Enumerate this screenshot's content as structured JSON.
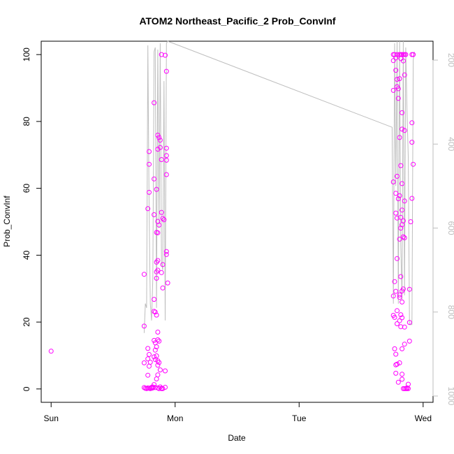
{
  "chart_data": {
    "type": "scatter",
    "title": "ATOM2 Northeast_Pacific_2 Prob_ConvInf",
    "xlabel": "Date",
    "ylabel": "Prob_ConvInf",
    "x_ticks": [
      "Sun",
      "Mon",
      "Tue",
      "Wed"
    ],
    "x_tick_values": [
      0,
      1,
      2,
      3
    ],
    "xlim": [
      -0.08,
      3.08
    ],
    "ylim": [
      -4,
      104
    ],
    "y_ticks": [
      0,
      20,
      40,
      60,
      80,
      100
    ],
    "y2_ticks": [
      200,
      400,
      600,
      800,
      1000
    ],
    "y2lim": [
      1015,
      155
    ],
    "point_color": "#ff00ff",
    "line_color": "#bebebe",
    "points": [
      [
        0.0,
        11.3
      ],
      [
        0.75,
        34.3
      ],
      [
        0.75,
        18.8
      ],
      [
        0.75,
        7.8
      ],
      [
        0.75,
        0.4
      ],
      [
        0.76,
        0.2
      ],
      [
        0.77,
        0.1
      ],
      [
        0.78,
        53.9
      ],
      [
        0.78,
        12.1
      ],
      [
        0.78,
        9.0
      ],
      [
        0.78,
        4.1
      ],
      [
        0.78,
        0.3
      ],
      [
        0.79,
        71.0
      ],
      [
        0.79,
        67.2
      ],
      [
        0.79,
        58.8
      ],
      [
        0.79,
        10.3
      ],
      [
        0.79,
        6.8
      ],
      [
        0.79,
        0.2
      ],
      [
        0.8,
        8.0
      ],
      [
        0.8,
        0.1
      ],
      [
        0.81,
        0.5
      ],
      [
        0.81,
        0.2
      ],
      [
        0.82,
        0.6
      ],
      [
        0.82,
        0.3
      ],
      [
        0.83,
        85.6
      ],
      [
        0.83,
        62.8
      ],
      [
        0.83,
        52.1
      ],
      [
        0.83,
        26.8
      ],
      [
        0.83,
        23.2
      ],
      [
        0.83,
        14.5
      ],
      [
        0.83,
        9.6
      ],
      [
        0.83,
        1.3
      ],
      [
        0.84,
        23.0
      ],
      [
        0.84,
        13.8
      ],
      [
        0.84,
        11.6
      ],
      [
        0.84,
        8.8
      ],
      [
        0.84,
        0.4
      ],
      [
        0.85,
        59.7
      ],
      [
        0.85,
        46.8
      ],
      [
        0.85,
        37.9
      ],
      [
        0.85,
        35.0
      ],
      [
        0.85,
        33.1
      ],
      [
        0.85,
        22.1
      ],
      [
        0.85,
        12.6
      ],
      [
        0.85,
        9.9
      ],
      [
        0.85,
        3.0
      ],
      [
        0.86,
        75.9
      ],
      [
        0.86,
        71.7
      ],
      [
        0.86,
        50.1
      ],
      [
        0.86,
        46.7
      ],
      [
        0.86,
        38.4
      ],
      [
        0.86,
        35.5
      ],
      [
        0.86,
        17.0
      ],
      [
        0.86,
        14.7
      ],
      [
        0.86,
        8.4
      ],
      [
        0.86,
        7.1
      ],
      [
        0.86,
        4.2
      ],
      [
        0.86,
        0.3
      ],
      [
        0.87,
        75.2
      ],
      [
        0.87,
        49.0
      ],
      [
        0.87,
        14.3
      ],
      [
        0.87,
        7.9
      ],
      [
        0.87,
        0.1
      ],
      [
        0.88,
        74.4
      ],
      [
        0.88,
        72.2
      ],
      [
        0.88,
        5.7
      ],
      [
        0.88,
        0.6
      ],
      [
        0.89,
        100.0
      ],
      [
        0.89,
        68.6
      ],
      [
        0.89,
        52.8
      ],
      [
        0.89,
        34.8
      ],
      [
        0.89,
        0.2
      ],
      [
        0.89,
        0.1
      ],
      [
        0.9,
        51.0
      ],
      [
        0.9,
        37.2
      ],
      [
        0.9,
        30.2
      ],
      [
        0.9,
        0.1
      ],
      [
        0.91,
        50.6
      ],
      [
        0.92,
        99.8
      ],
      [
        0.92,
        5.4
      ],
      [
        0.92,
        0.5
      ],
      [
        0.93,
        95.0
      ],
      [
        0.93,
        72.0
      ],
      [
        0.93,
        69.8
      ],
      [
        0.93,
        68.4
      ],
      [
        0.93,
        64.1
      ],
      [
        0.93,
        41.1
      ],
      [
        0.93,
        40.2
      ],
      [
        0.94,
        31.7
      ],
      [
        2.76,
        100.0
      ],
      [
        2.76,
        98.2
      ],
      [
        2.76,
        89.3
      ],
      [
        2.76,
        61.9
      ],
      [
        2.76,
        27.8
      ],
      [
        2.76,
        22.0
      ],
      [
        2.77,
        100.0
      ],
      [
        2.77,
        32.1
      ],
      [
        2.77,
        21.4
      ],
      [
        2.77,
        12.0
      ],
      [
        2.78,
        99.0
      ],
      [
        2.78,
        95.3
      ],
      [
        2.78,
        58.5
      ],
      [
        2.78,
        52.6
      ],
      [
        2.78,
        29.2
      ],
      [
        2.78,
        10.4
      ],
      [
        2.78,
        7.2
      ],
      [
        2.78,
        4.7
      ],
      [
        2.79,
        100.0
      ],
      [
        2.79,
        92.6
      ],
      [
        2.79,
        90.4
      ],
      [
        2.79,
        63.6
      ],
      [
        2.79,
        51.1
      ],
      [
        2.79,
        39.0
      ],
      [
        2.79,
        23.4
      ],
      [
        2.79,
        19.5
      ],
      [
        2.79,
        7.4
      ],
      [
        2.8,
        89.8
      ],
      [
        2.8,
        86.9
      ],
      [
        2.8,
        56.9
      ],
      [
        2.8,
        2.0
      ],
      [
        2.81,
        100.0
      ],
      [
        2.81,
        92.8
      ],
      [
        2.81,
        75.2
      ],
      [
        2.81,
        57.8
      ],
      [
        2.81,
        44.8
      ],
      [
        2.81,
        28.1
      ],
      [
        2.81,
        27.4
      ],
      [
        2.81,
        20.4
      ],
      [
        2.81,
        7.8
      ],
      [
        2.82,
        100.0
      ],
      [
        2.82,
        98.8
      ],
      [
        2.82,
        66.8
      ],
      [
        2.82,
        51.3
      ],
      [
        2.82,
        48.1
      ],
      [
        2.82,
        33.6
      ],
      [
        2.82,
        22.2
      ],
      [
        2.82,
        18.6
      ],
      [
        2.83,
        100.0
      ],
      [
        2.83,
        82.6
      ],
      [
        2.83,
        77.7
      ],
      [
        2.83,
        61.4
      ],
      [
        2.83,
        53.5
      ],
      [
        2.83,
        49.1
      ],
      [
        2.83,
        29.3
      ],
      [
        2.83,
        26.0
      ],
      [
        2.83,
        21.3
      ],
      [
        2.83,
        12.0
      ],
      [
        2.83,
        4.4
      ],
      [
        2.83,
        2.9
      ],
      [
        2.84,
        100.0
      ],
      [
        2.84,
        98.1
      ],
      [
        2.84,
        50.3
      ],
      [
        2.84,
        45.5
      ],
      [
        2.84,
        29.9
      ],
      [
        2.84,
        0.1
      ],
      [
        2.85,
        100.0
      ],
      [
        2.85,
        93.9
      ],
      [
        2.85,
        77.3
      ],
      [
        2.85,
        56.2
      ],
      [
        2.85,
        45.2
      ],
      [
        2.85,
        18.5
      ],
      [
        2.85,
        13.4
      ],
      [
        2.85,
        0.1
      ],
      [
        2.86,
        100.0
      ],
      [
        2.86,
        0.1
      ],
      [
        2.87,
        0.1
      ],
      [
        2.87,
        0.3
      ],
      [
        2.88,
        0.1
      ],
      [
        2.88,
        1.4
      ],
      [
        2.89,
        29.8
      ],
      [
        2.89,
        19.9
      ],
      [
        2.89,
        14.3
      ],
      [
        2.9,
        50.0
      ],
      [
        2.91,
        100.0
      ],
      [
        2.91,
        79.6
      ],
      [
        2.91,
        73.8
      ],
      [
        2.91,
        57.0
      ],
      [
        2.92,
        67.2
      ],
      [
        2.92,
        100.0
      ]
    ],
    "line": [
      [
        0.75,
        850
      ],
      [
        0.76,
        780
      ],
      [
        0.77,
        790
      ],
      [
        0.78,
        165
      ],
      [
        0.79,
        560
      ],
      [
        0.8,
        780
      ],
      [
        0.81,
        820
      ],
      [
        0.82,
        720
      ],
      [
        0.83,
        180
      ],
      [
        0.84,
        170
      ],
      [
        0.85,
        790
      ],
      [
        0.86,
        175
      ],
      [
        0.87,
        600
      ],
      [
        0.88,
        160
      ],
      [
        0.89,
        680
      ],
      [
        0.9,
        700
      ],
      [
        0.91,
        250
      ],
      [
        0.92,
        820
      ],
      [
        0.93,
        160
      ],
      [
        0.94,
        150
      ],
      [
        2.75,
        360
      ],
      [
        2.76,
        780
      ],
      [
        2.77,
        160
      ],
      [
        2.78,
        500
      ],
      [
        2.79,
        155
      ],
      [
        2.8,
        780
      ],
      [
        2.81,
        150
      ],
      [
        2.82,
        640
      ],
      [
        2.83,
        770
      ],
      [
        2.84,
        150
      ],
      [
        2.85,
        760
      ],
      [
        2.86,
        170
      ],
      [
        2.87,
        320
      ],
      [
        2.88,
        430
      ],
      [
        2.89,
        830
      ],
      [
        2.9,
        830
      ],
      [
        2.91,
        830
      ],
      [
        2.92,
        200
      ],
      [
        2.93,
        180
      ]
    ]
  }
}
